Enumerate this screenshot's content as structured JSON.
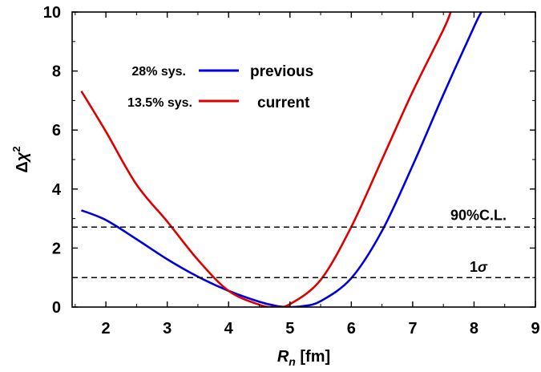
{
  "chart_data": {
    "type": "line",
    "xlabel": {
      "symbol": "R",
      "subscript": "n",
      "unit": " [fm]"
    },
    "ylabel": {
      "prefix": "Δ",
      "symbol": "χ",
      "superscript": "2"
    },
    "xlim": [
      1.45,
      9
    ],
    "ylim": [
      0,
      10
    ],
    "x_ticks": [
      2,
      3,
      4,
      5,
      6,
      7,
      8,
      9
    ],
    "y_ticks": [
      0,
      2,
      4,
      6,
      8,
      10
    ],
    "grid": false,
    "frame": true,
    "series": [
      {
        "name": "previous",
        "note": "28% sys.",
        "color": "#0000dd",
        "points": [
          [
            1.6,
            3.28
          ],
          [
            2.0,
            2.95
          ],
          [
            2.5,
            2.3
          ],
          [
            3.0,
            1.62
          ],
          [
            3.5,
            1.03
          ],
          [
            4.0,
            0.55
          ],
          [
            4.5,
            0.18
          ],
          [
            4.8,
            0.03
          ],
          [
            5.0,
            0.0
          ],
          [
            5.2,
            0.03
          ],
          [
            5.5,
            0.2
          ],
          [
            6.0,
            0.98
          ],
          [
            6.5,
            2.58
          ],
          [
            7.0,
            4.8
          ],
          [
            7.5,
            7.2
          ],
          [
            8.0,
            9.5
          ],
          [
            8.12,
            10.0
          ]
        ]
      },
      {
        "name": "current",
        "note": "13.5% sys.",
        "color": "#dd0000",
        "points": [
          [
            1.6,
            7.32
          ],
          [
            2.0,
            5.95
          ],
          [
            2.5,
            4.15
          ],
          [
            3.0,
            2.9
          ],
          [
            3.5,
            1.6
          ],
          [
            4.0,
            0.55
          ],
          [
            4.5,
            0.08
          ],
          [
            4.75,
            0.0
          ],
          [
            5.0,
            0.1
          ],
          [
            5.5,
            0.92
          ],
          [
            6.0,
            2.72
          ],
          [
            6.5,
            5.0
          ],
          [
            7.0,
            7.3
          ],
          [
            7.5,
            9.4
          ],
          [
            7.62,
            10.0
          ]
        ]
      }
    ],
    "reference_lines": [
      {
        "y": 2.71,
        "label": "90%C.L.",
        "style": "dashed",
        "color": "#000000"
      },
      {
        "y": 1.0,
        "label_main": "1",
        "label_greek": "σ",
        "style": "dashed",
        "color": "#000000"
      }
    ],
    "legend_position": "top-left"
  }
}
